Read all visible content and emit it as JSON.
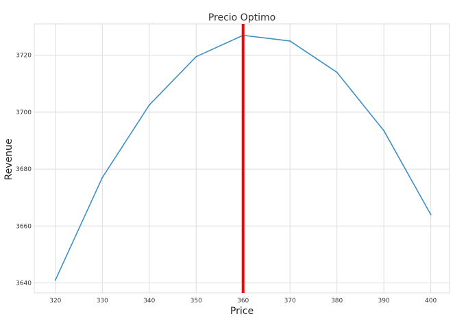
{
  "chart_data": {
    "type": "line",
    "title": "Precio Optimo",
    "xlabel": "Price",
    "ylabel": "Revenue",
    "x": [
      320,
      330,
      340,
      350,
      360,
      370,
      380,
      390,
      400
    ],
    "series": [
      {
        "values": [
          3641,
          3677,
          3702.5,
          3719.5,
          3727,
          3725,
          3714,
          3693.5,
          3664
        ],
        "color": "#3e8fc4"
      }
    ],
    "xticks": [
      320,
      330,
      340,
      350,
      360,
      370,
      380,
      390,
      400
    ],
    "yticks": [
      3640,
      3660,
      3680,
      3700,
      3720
    ],
    "xlim": [
      315.5,
      404
    ],
    "ylim": [
      3636.5,
      3731
    ],
    "annotations": [
      {
        "type": "vertical-line",
        "x": 360,
        "color": "#ff0000"
      }
    ],
    "grid": true,
    "legend": "none"
  }
}
